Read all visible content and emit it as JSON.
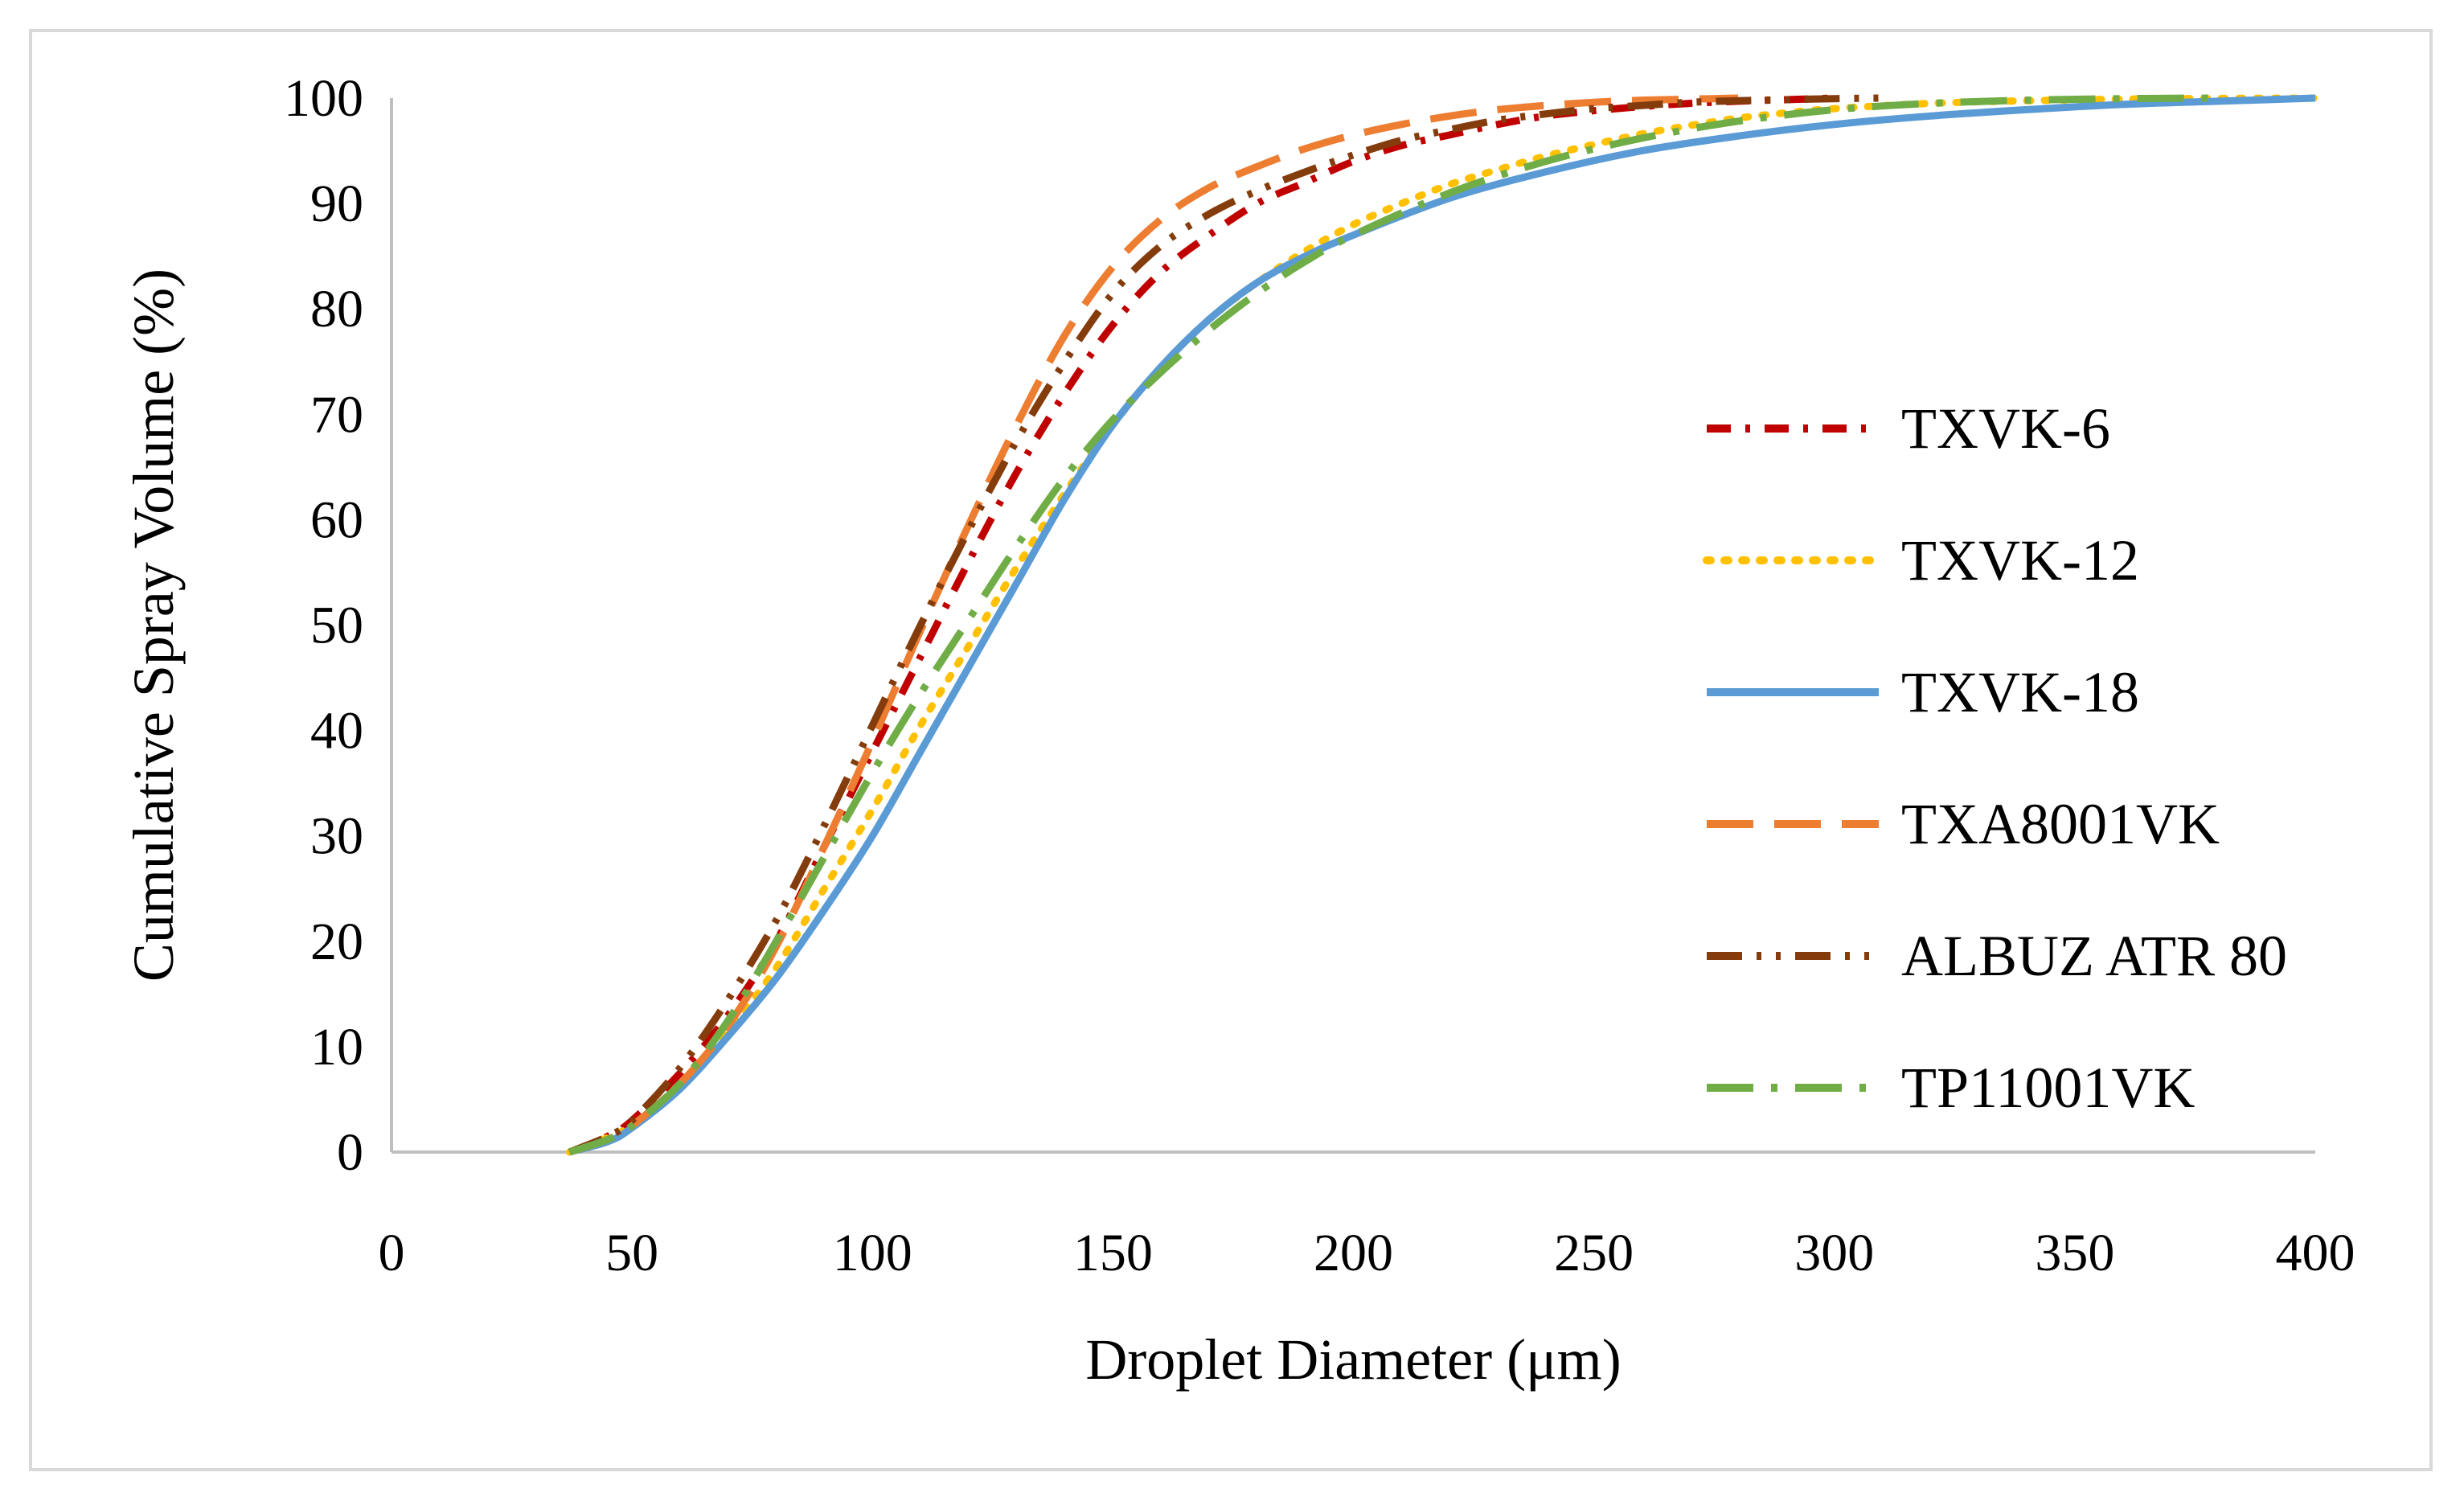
{
  "chart_data": {
    "type": "line",
    "title": "",
    "xlabel": "Droplet Diameter (μm)",
    "ylabel": "Cumulative Spray Volume (%)",
    "xlim": [
      0,
      400
    ],
    "ylim": [
      0,
      100
    ],
    "xticks": [
      "0",
      "50",
      "100",
      "150",
      "200",
      "250",
      "300",
      "350",
      "400"
    ],
    "yticks": [
      "0",
      "10",
      "20",
      "30",
      "40",
      "50",
      "60",
      "70",
      "80",
      "90",
      "100"
    ],
    "grid": false,
    "legend_position": "right",
    "series": [
      {
        "name": "TXVK-6",
        "color": "#c00000",
        "dash": "dash-dot",
        "x": [
          37,
          45,
          50,
          60,
          70,
          80,
          90,
          100,
          110,
          120,
          130,
          140,
          150,
          160,
          170,
          180,
          190,
          200,
          210,
          220,
          230,
          240,
          250,
          260,
          270,
          280,
          290,
          300
        ],
        "y": [
          0,
          1.5,
          3,
          7.5,
          13,
          20,
          29,
          38,
          47,
          56,
          64.5,
          72,
          78.5,
          83.5,
          87,
          90,
          92,
          94,
          95.5,
          96.5,
          97.5,
          98.3,
          98.8,
          99.2,
          99.5,
          99.7,
          99.85,
          100
        ]
      },
      {
        "name": "TXVK-12",
        "color": "#ffc000",
        "dash": "dot",
        "x": [
          37,
          50,
          60,
          70,
          80,
          90,
          100,
          110,
          120,
          130,
          140,
          150,
          160,
          170,
          180,
          190,
          200,
          210,
          220,
          230,
          240,
          250,
          260,
          270,
          280,
          290,
          300,
          320,
          340,
          360,
          380,
          400
        ],
        "y": [
          0,
          2.5,
          6.5,
          11.5,
          17.5,
          25,
          32.5,
          40.5,
          48,
          55.5,
          62.5,
          69,
          74.5,
          79,
          82.5,
          85.5,
          88,
          90,
          91.8,
          93.2,
          94.5,
          95.6,
          96.6,
          97.4,
          98.1,
          98.6,
          99,
          99.5,
          99.75,
          99.9,
          99.97,
          100
        ]
      },
      {
        "name": "TXVK-18",
        "color": "#5b9bd5",
        "dash": "solid",
        "x": [
          37,
          45,
          50,
          60,
          70,
          80,
          90,
          100,
          110,
          120,
          130,
          140,
          150,
          160,
          170,
          180,
          190,
          200,
          220,
          240,
          260,
          280,
          300,
          320,
          340,
          360,
          380,
          400
        ],
        "y": [
          0,
          1,
          2.3,
          6,
          11,
          16.5,
          23,
          30,
          38,
          46,
          54,
          62,
          69,
          74.5,
          79,
          82.5,
          85,
          87,
          90.5,
          93,
          95,
          96.4,
          97.5,
          98.3,
          98.9,
          99.4,
          99.7,
          100
        ]
      },
      {
        "name": "TXA8001VK",
        "color": "#ed7d31",
        "dash": "long-dash",
        "x": [
          37,
          45,
          50,
          60,
          70,
          80,
          90,
          100,
          110,
          120,
          130,
          140,
          150,
          160,
          170,
          180,
          190,
          200,
          210,
          220,
          230,
          240,
          250,
          260,
          270,
          280
        ],
        "y": [
          0,
          1.2,
          2.5,
          6.5,
          12,
          19.5,
          29,
          39,
          49.5,
          59.5,
          69,
          77.5,
          84,
          88.5,
          91.5,
          93.5,
          95.2,
          96.5,
          97.5,
          98.3,
          98.9,
          99.3,
          99.6,
          99.8,
          99.9,
          100
        ]
      },
      {
        "name": "ALBUZ ATR 80",
        "color": "#843c0c",
        "dash": "dash-dot-dot",
        "x": [
          37,
          45,
          50,
          60,
          70,
          80,
          90,
          100,
          110,
          120,
          130,
          140,
          150,
          160,
          170,
          180,
          190,
          200,
          210,
          220,
          230,
          240,
          250,
          260,
          270,
          280,
          290,
          300,
          310
        ],
        "y": [
          0,
          1.5,
          3,
          8,
          14.5,
          22,
          31,
          40.5,
          50,
          59,
          67.5,
          75,
          81.5,
          86,
          89,
          91.2,
          93,
          94.6,
          96,
          97,
          97.9,
          98.5,
          99,
          99.3,
          99.6,
          99.75,
          99.85,
          99.95,
          100
        ]
      },
      {
        "name": "TP11001VK",
        "color": "#70ad47",
        "dash": "long-dash-dot",
        "x": [
          37,
          45,
          50,
          60,
          70,
          80,
          90,
          100,
          110,
          120,
          130,
          140,
          150,
          160,
          170,
          180,
          190,
          200,
          220,
          240,
          260,
          280,
          300,
          320,
          340,
          360,
          380
        ],
        "y": [
          0,
          1.2,
          2.5,
          6.5,
          12.5,
          20,
          28,
          36,
          43.5,
          50.5,
          57.5,
          64,
          69.5,
          74,
          78,
          81.5,
          84.5,
          87,
          91,
          94,
          96.2,
          97.8,
          98.9,
          99.5,
          99.8,
          99.95,
          100
        ]
      }
    ]
  }
}
